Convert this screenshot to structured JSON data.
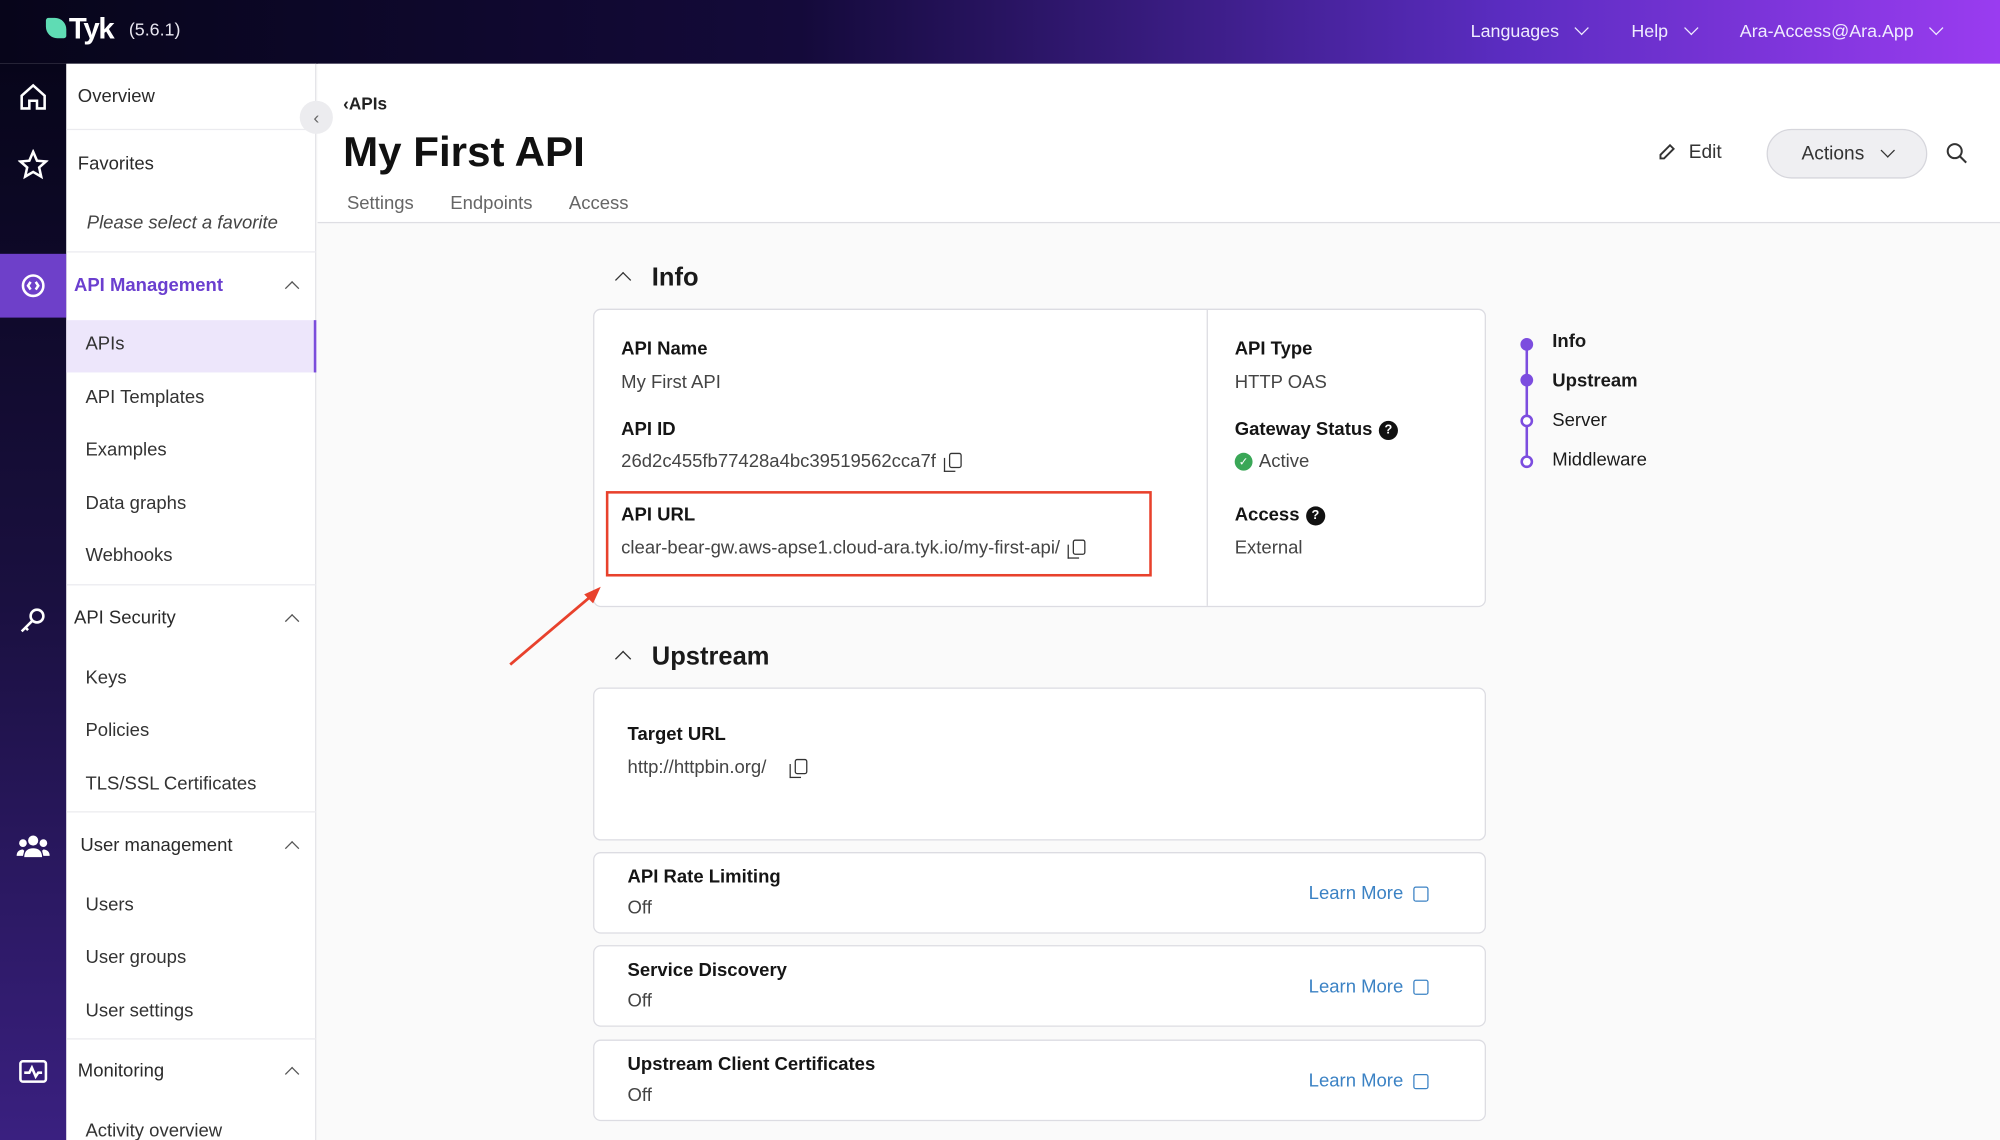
{
  "topbar": {
    "logo": "Tyk",
    "version": "(5.6.1)",
    "languages": "Languages",
    "help": "Help",
    "user": "Ara-Access@Ara.App"
  },
  "sidebar": {
    "overview": "Overview",
    "favorites": "Favorites",
    "favorites_empty": "Please select a favorite",
    "api_management": {
      "label": "API Management",
      "items": [
        "APIs",
        "API Templates",
        "Examples",
        "Data graphs",
        "Webhooks"
      ]
    },
    "api_security": {
      "label": "API Security",
      "items": [
        "Keys",
        "Policies",
        "TLS/SSL Certificates"
      ]
    },
    "user_management": {
      "label": "User management",
      "items": [
        "Users",
        "User groups",
        "User settings"
      ]
    },
    "monitoring": {
      "label": "Monitoring",
      "items": [
        "Activity overview"
      ]
    }
  },
  "header": {
    "breadcrumb": "APIs",
    "title": "My First API",
    "tabs": [
      "Settings",
      "Endpoints",
      "Access"
    ],
    "edit": "Edit",
    "actions": "Actions"
  },
  "info": {
    "title": "Info",
    "api_name_label": "API Name",
    "api_name": "My First API",
    "api_id_label": "API ID",
    "api_id": "26d2c455fb77428a4bc39519562cca7f",
    "api_url_label": "API URL",
    "api_url": "clear-bear-gw.aws-apse1.cloud-ara.tyk.io/my-first-api/",
    "api_type_label": "API Type",
    "api_type": "HTTP OAS",
    "gateway_status_label": "Gateway Status",
    "gateway_status": "Active",
    "access_label": "Access",
    "access": "External"
  },
  "upstream": {
    "title": "Upstream",
    "target_url_label": "Target URL",
    "target_url": "http://httpbin.org/",
    "features": [
      {
        "label": "API Rate Limiting",
        "value": "Off",
        "link": "Learn More"
      },
      {
        "label": "Service Discovery",
        "value": "Off",
        "link": "Learn More"
      },
      {
        "label": "Upstream Client Certificates",
        "value": "Off",
        "link": "Learn More"
      }
    ]
  },
  "toc": [
    "Info",
    "Upstream",
    "Server",
    "Middleware"
  ],
  "colors": {
    "accent": "#7c4ddf",
    "highlight": "#e8412c",
    "active_status": "#3aa757",
    "link": "#3b82c4"
  }
}
